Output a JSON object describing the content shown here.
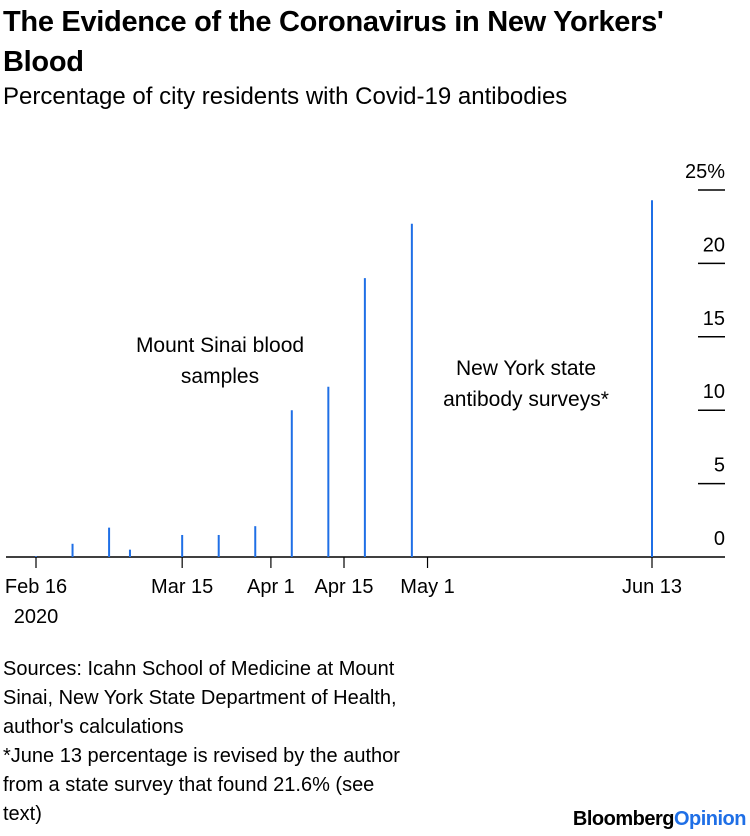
{
  "header": {
    "title": "The Evidence of the Coronavirus in New Yorkers' Blood",
    "subtitle": "Percentage of city residents with Covid-19 antibodies"
  },
  "chart_data": {
    "type": "bar",
    "title": "The Evidence of the Coronavirus in New Yorkers' Blood",
    "subtitle": "Percentage of city residents with Covid-19 antibodies",
    "xlabel": "",
    "ylabel": "",
    "ylim": [
      0,
      25
    ],
    "xlim": [
      "2020-02-16",
      "2020-06-26"
    ],
    "grid": false,
    "yticks": [
      {
        "value": 25,
        "label": "25%"
      },
      {
        "value": 20,
        "label": "20"
      },
      {
        "value": 15,
        "label": "15"
      },
      {
        "value": 10,
        "label": "10"
      },
      {
        "value": 5,
        "label": "5"
      },
      {
        "value": 0,
        "label": "0"
      }
    ],
    "xticks": [
      {
        "date": "2020-02-16",
        "label": "Feb 16",
        "sublabel": "2020"
      },
      {
        "date": "2020-03-15",
        "label": "Mar 15"
      },
      {
        "date": "2020-04-01",
        "label": "Apr 1"
      },
      {
        "date": "2020-04-15",
        "label": "Apr 15"
      },
      {
        "date": "2020-05-01",
        "label": "May 1"
      },
      {
        "date": "2020-06-13",
        "label": "Jun 13"
      }
    ],
    "series": [
      {
        "name": "Mount Sinai blood samples",
        "color": "#1f6fe6",
        "points": [
          {
            "date": "2020-02-16",
            "value": 0.05
          },
          {
            "date": "2020-02-23",
            "value": 0.9
          },
          {
            "date": "2020-03-01",
            "value": 2.0
          },
          {
            "date": "2020-03-05",
            "value": 0.5
          },
          {
            "date": "2020-03-15",
            "value": 1.5
          },
          {
            "date": "2020-03-22",
            "value": 1.5
          },
          {
            "date": "2020-03-29",
            "value": 2.1
          },
          {
            "date": "2020-04-05",
            "value": 10.0
          },
          {
            "date": "2020-04-12",
            "value": 11.6
          },
          {
            "date": "2020-04-19",
            "value": 19.0
          }
        ]
      },
      {
        "name": "New York state antibody surveys*",
        "color": "#1f6fe6",
        "points": [
          {
            "date": "2020-04-28",
            "value": 22.7
          },
          {
            "date": "2020-06-13",
            "value": 24.3
          }
        ]
      }
    ],
    "annotations": [
      {
        "text_lines": [
          "Mount Sinai blood",
          "samples"
        ]
      },
      {
        "text_lines": [
          "New York state",
          "antibody surveys*"
        ]
      }
    ]
  },
  "footer": {
    "sources_lines": [
      "Sources: Icahn School of Medicine at Mount",
      "Sinai, New York State Department of Health,",
      "author's calculations",
      "*June 13 percentage is revised by the author",
      "from a state survey that found 21.6% (see",
      "text)"
    ],
    "logo_part1": "Bloomberg",
    "logo_part2": "Opinion",
    "axis_color": "#000000"
  }
}
